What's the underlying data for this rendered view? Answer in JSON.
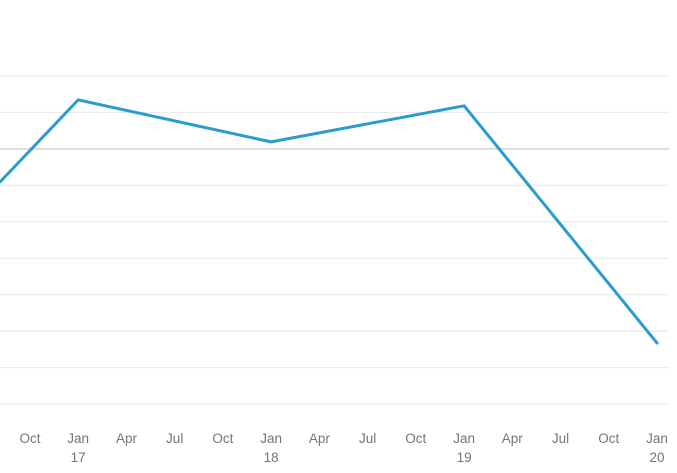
{
  "chart_data": {
    "type": "line",
    "title": "",
    "xlabel": "",
    "ylabel": "",
    "legend": "none",
    "ylim": [
      0,
      100
    ],
    "y_axis_labels_visible": false,
    "grid": {
      "horizontal_line_count": 10,
      "emphasized_line_index": 2
    },
    "x_tick_labels": [
      {
        "label": "Oct",
        "sublabel": ""
      },
      {
        "label": "Jan",
        "sublabel": "17"
      },
      {
        "label": "Apr",
        "sublabel": ""
      },
      {
        "label": "Jul",
        "sublabel": ""
      },
      {
        "label": "Oct",
        "sublabel": ""
      },
      {
        "label": "Jan",
        "sublabel": "18"
      },
      {
        "label": "Apr",
        "sublabel": ""
      },
      {
        "label": "Jul",
        "sublabel": ""
      },
      {
        "label": "Oct",
        "sublabel": ""
      },
      {
        "label": "Jan",
        "sublabel": "19"
      },
      {
        "label": "Apr",
        "sublabel": ""
      },
      {
        "label": "Jul",
        "sublabel": ""
      },
      {
        "label": "Oct",
        "sublabel": ""
      },
      {
        "label": "Jan",
        "sublabel": "20"
      }
    ],
    "series": [
      {
        "color": "#2b9cce",
        "points": [
          {
            "x_tick_index": -0.62,
            "value": 67.7,
            "clipped_at_left_edge": true
          },
          {
            "x_tick_index": 1,
            "value": 92.7,
            "x_label": "Jan 17"
          },
          {
            "x_tick_index": 5,
            "value": 79.9,
            "x_label": "Jan 18"
          },
          {
            "x_tick_index": 9,
            "value": 90.9,
            "x_label": "Jan 19"
          },
          {
            "x_tick_index": 13,
            "value": 18.6,
            "x_label": "Jan 20"
          }
        ]
      }
    ],
    "colors": {
      "line": "#2b9cce",
      "gridline": "#e8e8e8",
      "gridline_emphasis": "#dcdcdc",
      "tick_label": "#757575",
      "background": "#ffffff"
    }
  }
}
